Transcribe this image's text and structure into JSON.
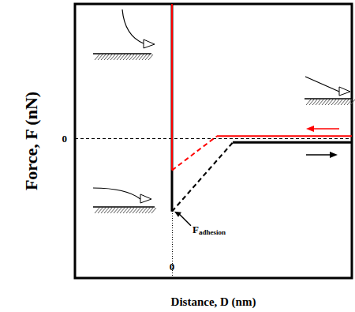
{
  "chart_data": {
    "type": "line",
    "xlabel": "Distance, D (nm)",
    "ylabel": "Force, F (nN)",
    "xlim": [
      -4.1,
      7.6
    ],
    "ylim": [
      -4.4,
      4.25
    ],
    "xticks": [
      0
    ],
    "yticks": [
      0
    ],
    "grid": true,
    "series": [
      {
        "x": [
          0,
          0
        ],
        "values": [
          4.25,
          -2.3
        ],
        "color": "#000000",
        "line_style": "solid"
      },
      {
        "x": [
          0,
          2.57
        ],
        "values": [
          -2.3,
          -0.12
        ],
        "color": "#000000",
        "line_style": "dashed"
      },
      {
        "x": [
          2.57,
          7.6
        ],
        "values": [
          -0.12,
          -0.12
        ],
        "color": "#000000",
        "line_style": "solid"
      },
      {
        "x": [
          1.9,
          7.6
        ],
        "values": [
          0.08,
          0.08
        ],
        "color": "#ff0000",
        "line_style": "solid"
      },
      {
        "x": [
          0,
          1.9
        ],
        "values": [
          -1.0,
          0.08
        ],
        "color": "#ff0000",
        "line_style": "dashed"
      },
      {
        "x": [
          0,
          0
        ],
        "values": [
          -1.0,
          4.25
        ],
        "color": "#ff0000",
        "line_style": "solid"
      }
    ],
    "annotations": [
      {
        "text": "F",
        "subscript": "adhesion",
        "x": 0,
        "y": -2.3
      }
    ]
  }
}
